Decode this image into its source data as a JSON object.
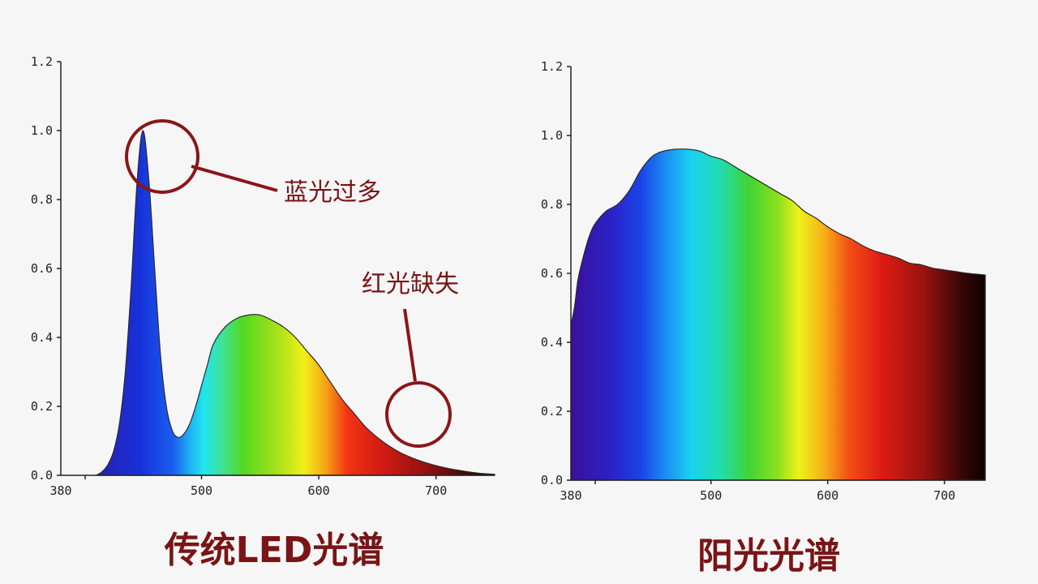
{
  "chart_data": [
    {
      "type": "area",
      "title": "传统LED光谱",
      "xlim": [
        380,
        750
      ],
      "ylim": [
        0,
        1.2
      ],
      "x_ticks": [
        380,
        500,
        600,
        700
      ],
      "y_ticks": [
        "0.0",
        "0.2",
        "0.4",
        "0.6",
        "0.8",
        "1.0",
        "1.2"
      ],
      "x": [
        410,
        415,
        420,
        425,
        430,
        435,
        440,
        445,
        450,
        455,
        460,
        465,
        470,
        475,
        480,
        485,
        490,
        495,
        500,
        505,
        510,
        520,
        530,
        540,
        550,
        560,
        570,
        580,
        590,
        600,
        610,
        620,
        630,
        640,
        650,
        660,
        670,
        680,
        690,
        700,
        710,
        720,
        730,
        740,
        750
      ],
      "values": [
        0,
        0.01,
        0.03,
        0.07,
        0.15,
        0.3,
        0.55,
        0.85,
        1.0,
        0.86,
        0.6,
        0.35,
        0.2,
        0.13,
        0.11,
        0.12,
        0.15,
        0.2,
        0.26,
        0.32,
        0.38,
        0.43,
        0.455,
        0.465,
        0.465,
        0.45,
        0.43,
        0.4,
        0.36,
        0.32,
        0.27,
        0.22,
        0.18,
        0.14,
        0.11,
        0.085,
        0.065,
        0.05,
        0.038,
        0.028,
        0.02,
        0.014,
        0.009,
        0.005,
        0.003
      ],
      "annotations": [
        {
          "text": "蓝光过多",
          "x": 450,
          "y": 0.97
        },
        {
          "text": "红光缺失",
          "x": 685,
          "y": 0.17
        }
      ]
    },
    {
      "type": "area",
      "title": "阳光光谱",
      "xlim": [
        380,
        735
      ],
      "ylim": [
        0,
        1.2
      ],
      "x_ticks": [
        380,
        500,
        600,
        700
      ],
      "y_ticks": [
        "0.0",
        "0.2",
        "0.4",
        "0.6",
        "0.8",
        "1.0",
        "1.2"
      ],
      "x": [
        380,
        383,
        386,
        390,
        395,
        400,
        410,
        420,
        430,
        440,
        450,
        460,
        470,
        480,
        490,
        500,
        510,
        520,
        530,
        540,
        550,
        560,
        570,
        580,
        590,
        600,
        610,
        620,
        630,
        640,
        650,
        660,
        670,
        680,
        690,
        700,
        710,
        720,
        730,
        735
      ],
      "values": [
        0.45,
        0.5,
        0.58,
        0.64,
        0.7,
        0.74,
        0.78,
        0.8,
        0.84,
        0.9,
        0.94,
        0.955,
        0.96,
        0.96,
        0.955,
        0.94,
        0.93,
        0.91,
        0.89,
        0.87,
        0.85,
        0.83,
        0.81,
        0.78,
        0.76,
        0.735,
        0.715,
        0.7,
        0.68,
        0.665,
        0.655,
        0.645,
        0.63,
        0.625,
        0.615,
        0.61,
        0.605,
        0.6,
        0.597,
        0.595
      ]
    }
  ]
}
